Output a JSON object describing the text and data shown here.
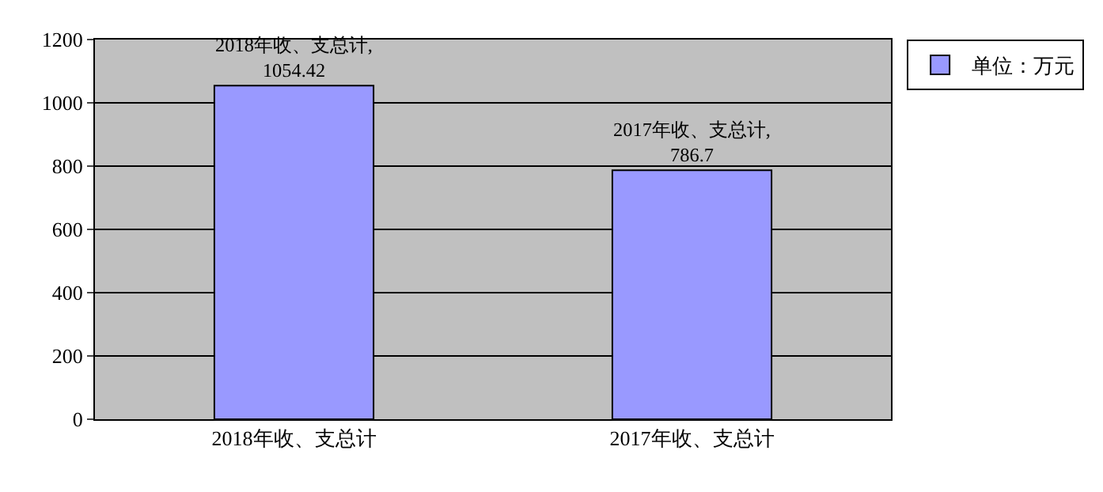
{
  "chart_data": {
    "type": "bar",
    "categories": [
      "2018年收、支总计",
      "2017年收、支总计"
    ],
    "series": [
      {
        "name": "单位：万元",
        "color": "#9999ff",
        "values": [
          1054.42,
          786.7
        ],
        "value_labels": [
          "2018年收、支总计,\n1054.42",
          "2017年收、支总计,\n786.7"
        ]
      }
    ],
    "ylim": [
      0,
      1200
    ],
    "yticks": [
      0,
      200,
      400,
      600,
      800,
      1000,
      1200
    ],
    "grid": "y",
    "legend": "top right"
  }
}
